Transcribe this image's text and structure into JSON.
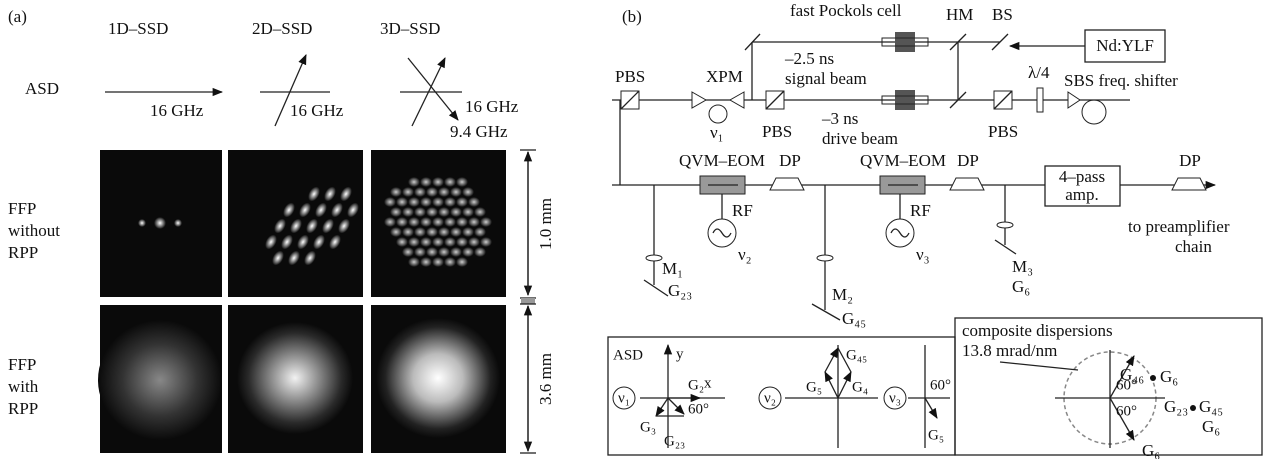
{
  "panel_a": {
    "label": "(a)",
    "columns": [
      "1D–SSD",
      "2D–SSD",
      "3D–SSD"
    ],
    "row_asd": "ASD",
    "frequencies": [
      "16 GHz",
      "16 GHz",
      "16 GHz",
      "9.4 GHz"
    ],
    "rows": [
      [
        "FFP",
        "without",
        "RPP"
      ],
      [
        "FFP",
        "with",
        "RPP"
      ]
    ],
    "scales": [
      "1.0 mm",
      "3.6 mm"
    ]
  },
  "panel_b": {
    "label": "(b)",
    "pockels": "fast Pockols cell",
    "hm": "HM",
    "bs": "BS",
    "laser": "Nd:YLF",
    "pbs": [
      "PBS",
      "PBS",
      "PBS"
    ],
    "xpm": "XPM",
    "signal_beam": [
      "–2.5 ns",
      "signal beam"
    ],
    "drive_beam": [
      "–3 ns",
      "drive beam"
    ],
    "quarter_wave": "λ/4",
    "sbs": "SBS freq. shifter",
    "modulators": [
      "QVM–EOM",
      "QVM–EOM"
    ],
    "dp": [
      "DP",
      "DP",
      "DP"
    ],
    "rf": [
      "RF",
      "RF"
    ],
    "frequencies": [
      "ν₁",
      "ν₂",
      "ν₃"
    ],
    "amplifier": [
      "4–pass",
      "amp."
    ],
    "output": [
      "to preamplifier",
      "chain"
    ],
    "mirrors": [
      "M₁",
      "M₂",
      "M₃"
    ],
    "gratings": [
      "G₂₃",
      "G₄₅",
      "G₆"
    ]
  },
  "inset": {
    "label": "ASD",
    "axes": [
      "y",
      "x"
    ],
    "frequencies": [
      "ν₁",
      "ν₂",
      "ν₃"
    ],
    "labels_1": [
      "G₂",
      "G₃",
      "G₂₃",
      "60°"
    ],
    "labels_2": [
      "G₄₅",
      "G₅",
      "G₄"
    ],
    "labels_3": [
      "60°",
      "G₅"
    ]
  },
  "composite": {
    "title": [
      "composite dispersions",
      "13.8 mrad/nm"
    ],
    "labels": [
      "G₄₆",
      "G₆",
      "G₂₃",
      "G₄₅",
      "G₆",
      "60°",
      "60°",
      "G₆"
    ]
  }
}
